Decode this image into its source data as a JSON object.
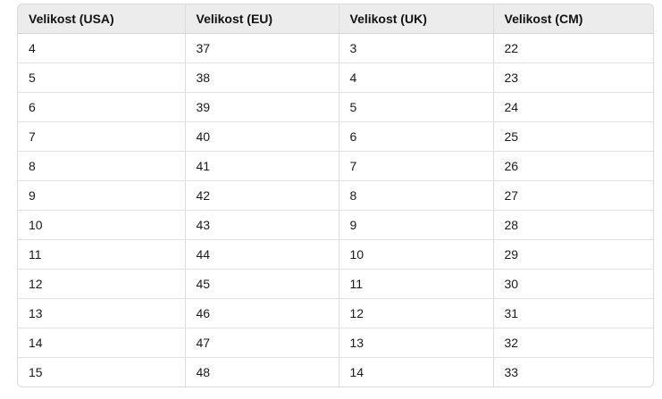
{
  "table": {
    "headers": [
      "Velikost (USA)",
      "Velikost (EU)",
      "Velikost (UK)",
      "Velikost (CM)"
    ],
    "rows": [
      [
        "4",
        "37",
        "3",
        "22"
      ],
      [
        "5",
        "38",
        "4",
        "23"
      ],
      [
        "6",
        "39",
        "5",
        "24"
      ],
      [
        "7",
        "40",
        "6",
        "25"
      ],
      [
        "8",
        "41",
        "7",
        "26"
      ],
      [
        "9",
        "42",
        "8",
        "27"
      ],
      [
        "10",
        "43",
        "9",
        "28"
      ],
      [
        "11",
        "44",
        "10",
        "29"
      ],
      [
        "12",
        "45",
        "11",
        "30"
      ],
      [
        "13",
        "46",
        "12",
        "31"
      ],
      [
        "14",
        "47",
        "13",
        "32"
      ],
      [
        "15",
        "48",
        "14",
        "33"
      ]
    ]
  }
}
